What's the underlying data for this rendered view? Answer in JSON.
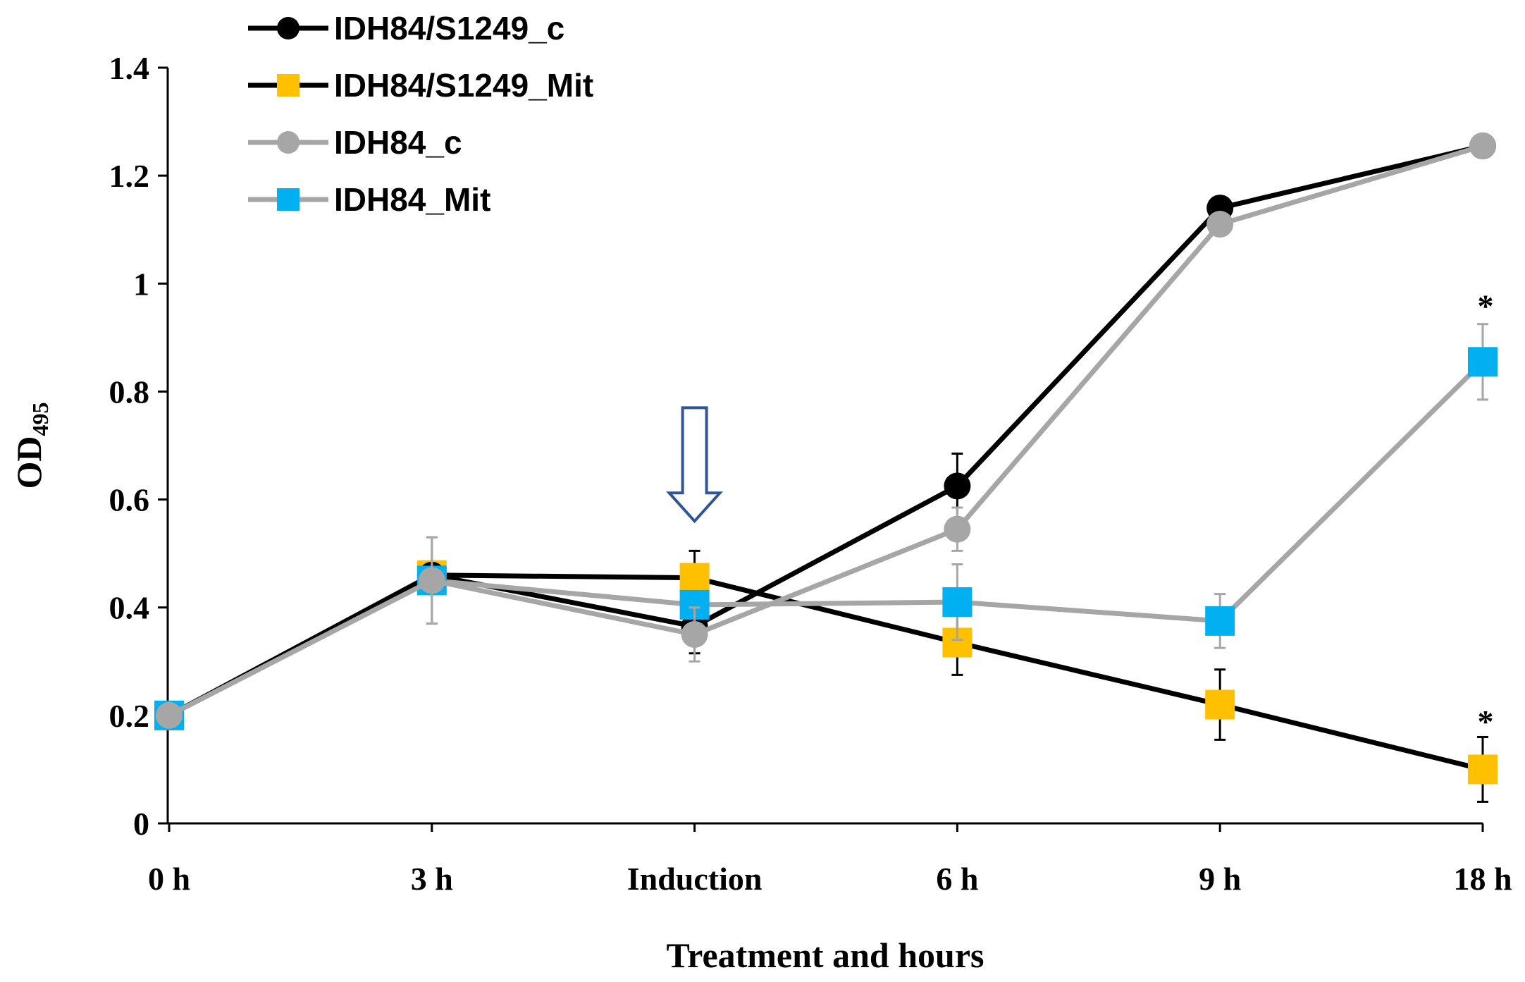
{
  "chart_data": {
    "type": "line",
    "title": "",
    "xlabel": "Treatment and hours",
    "ylabel_main": "OD",
    "ylabel_sub": "495",
    "categories": [
      "0 h",
      "3 h",
      "Induction",
      "6 h",
      "9 h",
      "18 h"
    ],
    "ylim": [
      0,
      1.4
    ],
    "yticks": [
      0,
      0.2,
      0.4,
      0.6,
      0.8,
      1,
      1.2,
      1.4
    ],
    "ytick_labels": [
      "0",
      "0.2",
      "0.4",
      "0.6",
      "0.8",
      "1",
      "1.2",
      "1.4"
    ],
    "grid": false,
    "legend_position": "top-left",
    "series": [
      {
        "name": "IDH84/S1249_c",
        "line_color": "#000000",
        "marker_color": "#000000",
        "marker": "circle",
        "values": [
          0.2,
          0.46,
          0.365,
          0.625,
          1.14,
          1.255
        ],
        "errors": [
          0.0,
          0.0,
          0.05,
          0.06,
          0.0,
          0.0
        ]
      },
      {
        "name": "IDH84/S1249_Mit",
        "line_color": "#000000",
        "marker_color": "#FFC000",
        "marker": "square",
        "values": [
          0.2,
          0.46,
          0.455,
          0.335,
          0.22,
          0.1
        ],
        "errors": [
          0.0,
          0.0,
          0.05,
          0.06,
          0.065,
          0.06
        ]
      },
      {
        "name": "IDH84_c",
        "line_color": "#A6A6A6",
        "marker_color": "#A6A6A6",
        "marker": "circle",
        "values": [
          0.2,
          0.45,
          0.35,
          0.545,
          1.11,
          1.255
        ],
        "errors": [
          0.0,
          0.08,
          0.05,
          0.04,
          0.0,
          0.0
        ]
      },
      {
        "name": "IDH84_Mit",
        "line_color": "#A6A6A6",
        "marker_color": "#00B0F0",
        "marker": "square",
        "values": [
          0.2,
          0.45,
          0.405,
          0.41,
          0.375,
          0.855
        ],
        "errors": [
          0.0,
          0.08,
          0.0,
          0.07,
          0.05,
          0.07
        ]
      }
    ],
    "annotations": [
      {
        "text": "*",
        "category_index": 5,
        "value": 0.97
      },
      {
        "text": "*",
        "category_index": 5,
        "value": 0.2
      }
    ],
    "induction_arrow": {
      "category_index": 2,
      "value_top": 0.77,
      "value_bottom": 0.56,
      "color": "#2F5597"
    }
  }
}
